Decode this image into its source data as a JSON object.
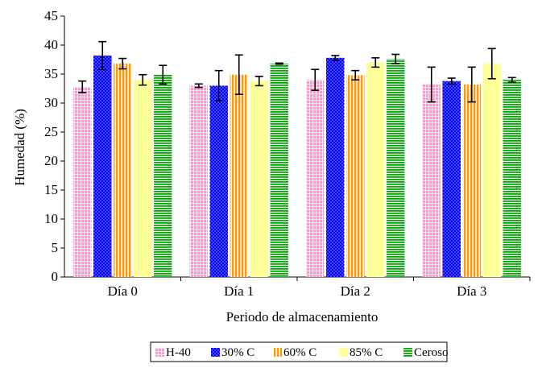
{
  "chart_data": {
    "type": "bar",
    "title": "",
    "xlabel": "Periodo de almacenamiento",
    "ylabel": "Humedad (%)",
    "ylim": [
      0,
      45
    ],
    "yticks": [
      0,
      5,
      10,
      15,
      20,
      25,
      30,
      35,
      40,
      45
    ],
    "grid": false,
    "legend_position": "bottom",
    "categories": [
      "Día 0",
      "Día 1",
      "Día 2",
      "Día 3"
    ],
    "series": [
      {
        "name": "H-40",
        "color": "#ff99cc",
        "pattern": "grid",
        "values": [
          32.8,
          33.0,
          34.0,
          33.2
        ],
        "errors": [
          1.0,
          0.3,
          1.8,
          3.0
        ]
      },
      {
        "name": "30% C",
        "color": "#0000ff",
        "pattern": "dots",
        "values": [
          38.2,
          33.0,
          37.8,
          33.8
        ],
        "errors": [
          2.4,
          2.6,
          0.4,
          0.5
        ]
      },
      {
        "name": "60% C",
        "color": "#ff9900",
        "pattern": "vlines",
        "values": [
          36.8,
          34.9,
          34.8,
          33.2
        ],
        "errors": [
          0.9,
          3.4,
          0.8,
          3.0
        ]
      },
      {
        "name": "85% C",
        "color": "#ffff99",
        "pattern": "solid",
        "values": [
          34.0,
          33.8,
          37.0,
          36.8
        ],
        "errors": [
          0.9,
          0.8,
          0.8,
          2.6
        ]
      },
      {
        "name": "Ceroso",
        "color": "#00aa00",
        "pattern": "hlines",
        "values": [
          34.9,
          36.8,
          37.6,
          34.0
        ],
        "errors": [
          1.6,
          0.1,
          0.8,
          0.4
        ]
      }
    ]
  }
}
